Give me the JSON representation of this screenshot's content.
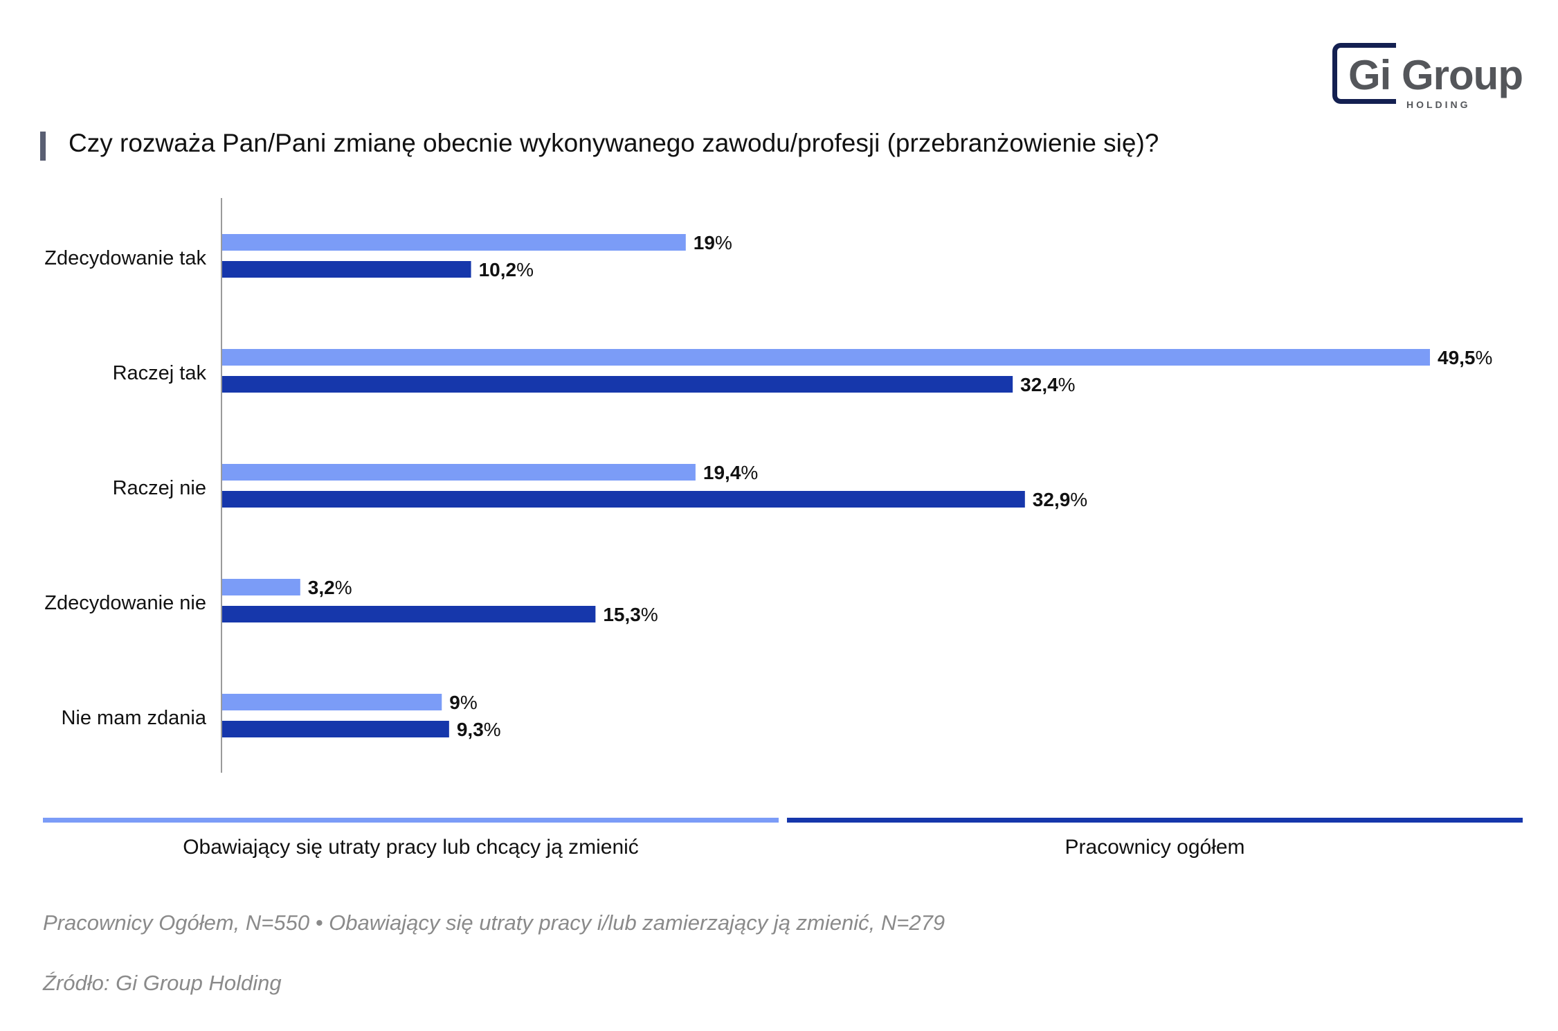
{
  "title": "Czy rozważa Pan/Pani zmianę obecnie wykonywanego zawodu/profesji (przebranżowienie się)?",
  "logo": {
    "name": "Gi Group",
    "sub": "HOLDING"
  },
  "colors": {
    "light": "#7b9cf7",
    "dark": "#1637ab",
    "axis": "#9a9a9a"
  },
  "chart_data": {
    "type": "bar",
    "orientation": "horizontal",
    "categories": [
      "Zdecydowanie tak",
      "Raczej tak",
      "Raczej nie",
      "Zdecydowanie nie",
      "Nie mam zdania"
    ],
    "series": [
      {
        "name": "Obawiający się utraty pracy lub chcący ją zmienić",
        "color": "#7b9cf7",
        "values": [
          19,
          49.5,
          19.4,
          3.2,
          9
        ],
        "labels": [
          "19",
          "49,5",
          "19,4",
          "3,2",
          "9"
        ]
      },
      {
        "name": "Pracownicy ogółem",
        "color": "#1637ab",
        "values": [
          10.2,
          32.4,
          32.9,
          15.3,
          9.3
        ],
        "labels": [
          "10,2",
          "32,4",
          "32,9",
          "15,3",
          "9,3"
        ]
      }
    ],
    "unit": "%",
    "xlim": [
      0,
      49.5
    ],
    "legend_position": "bottom",
    "grid": false
  },
  "footnotes": {
    "sample": "Pracownicy Ogółem, N=550 • Obawiający się utraty pracy i/lub zamierzający ją zmienić, N=279",
    "source": "Źródło: Gi Group Holding"
  }
}
